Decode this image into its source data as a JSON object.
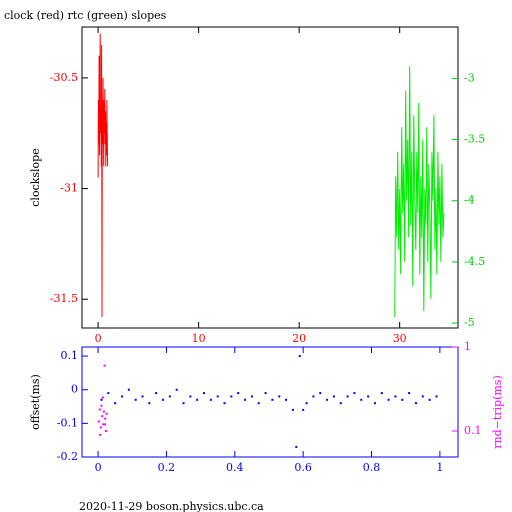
{
  "chart_data": [
    {
      "type": "line",
      "title": "clock (red) rtc (green) slopes",
      "ylabel": "clockslope",
      "xlim": [
        -1.6,
        35.8
      ],
      "xticks": [
        0,
        10,
        20,
        30
      ],
      "ylim": [
        -31.63,
        -30.27
      ],
      "yticks": [
        -30.5,
        -31,
        -31.5
      ],
      "y2lim": [
        -5.04,
        -2.58
      ],
      "y2ticks": [
        -3,
        -3.5,
        -4,
        -4.5,
        -5
      ],
      "axis_color": "#000000",
      "tick_color": "#ff0000",
      "tick2_color": "#00cc00",
      "series": [
        {
          "name": "clock",
          "color": "#ff0000",
          "axis": "y",
          "x": [
            0,
            0.035,
            0.07,
            0.105,
            0.14,
            0.175,
            0.21,
            0.245,
            0.28,
            0.315,
            0.35,
            0.385,
            0.42,
            0.455,
            0.49,
            0.525,
            0.56,
            0.595,
            0.63,
            0.665,
            0.7,
            0.735,
            0.77,
            0.805,
            0.84,
            0.875,
            0.91,
            0.945
          ],
          "values": [
            -30.95,
            -30.6,
            -30.8,
            -30.4,
            -30.85,
            -30.55,
            -30.3,
            -30.75,
            -30.65,
            -30.9,
            -30.35,
            -31.58,
            -30.6,
            -30.8,
            -30.5,
            -30.7,
            -30.9,
            -30.6,
            -30.75,
            -30.55,
            -30.8,
            -30.65,
            -30.9,
            -30.7,
            -30.85,
            -30.6,
            -30.75,
            -30.9
          ]
        },
        {
          "name": "rtc",
          "color": "#00ee00",
          "axis": "y2",
          "x": [
            29.5,
            29.6,
            29.7,
            29.8,
            29.9,
            30.0,
            30.1,
            30.2,
            30.3,
            30.4,
            30.5,
            30.6,
            30.7,
            30.8,
            30.9,
            31.0,
            31.1,
            31.2,
            31.3,
            31.4,
            31.5,
            31.6,
            31.7,
            31.8,
            31.9,
            32.0,
            32.1,
            32.2,
            32.3,
            32.4,
            32.5,
            32.6,
            32.7,
            32.8,
            32.9,
            33.0,
            33.1,
            33.2,
            33.3,
            33.4,
            33.5,
            33.6,
            33.7,
            33.8,
            33.9,
            34.0,
            34.1,
            34.2,
            34.3,
            34.4
          ],
          "values": [
            -4.95,
            -3.8,
            -4.3,
            -3.6,
            -4.4,
            -3.9,
            -4.6,
            -3.4,
            -4.1,
            -3.7,
            -4.5,
            -3.1,
            -4.0,
            -3.5,
            -4.3,
            -2.9,
            -4.2,
            -3.6,
            -4.7,
            -3.3,
            -4.0,
            -4.4,
            -3.6,
            -4.1,
            -3.2,
            -4.6,
            -3.8,
            -4.3,
            -3.5,
            -4.9,
            -3.9,
            -4.2,
            -3.4,
            -4.5,
            -3.7,
            -4.1,
            -4.8,
            -3.6,
            -4.0,
            -3.3,
            -4.4,
            -3.9,
            -4.6,
            -3.6,
            -4.2,
            -3.8,
            -4.5,
            -3.7,
            -4.3,
            -4.1
          ]
        }
      ]
    },
    {
      "type": "scatter",
      "ylabel": "offset(ms)",
      "y2label": "rnd−trip(ms)",
      "xlim": [
        -0.047,
        1.053
      ],
      "xticks": [
        0,
        0.2,
        0.4,
        0.6,
        0.8,
        1
      ],
      "ylim": [
        -0.2,
        0.127
      ],
      "yticks": [
        0.1,
        0,
        -0.1,
        -0.2
      ],
      "y2lim": [
        0.049,
        1
      ],
      "y2ticks": [
        1,
        0.1
      ],
      "y2log": true,
      "axis_color": "#0000ff",
      "tick_color": "#0000ff",
      "tick2_color": "#ff00ff",
      "series": [
        {
          "name": "offset",
          "color": "#0000ff",
          "axis": "y",
          "x": [
            0.01,
            0.03,
            0.05,
            0.07,
            0.09,
            0.11,
            0.13,
            0.15,
            0.17,
            0.19,
            0.21,
            0.23,
            0.25,
            0.27,
            0.29,
            0.31,
            0.33,
            0.35,
            0.37,
            0.39,
            0.41,
            0.43,
            0.45,
            0.47,
            0.49,
            0.51,
            0.53,
            0.55,
            0.57,
            0.58,
            0.59,
            0.6,
            0.61,
            0.63,
            0.65,
            0.67,
            0.69,
            0.71,
            0.73,
            0.75,
            0.77,
            0.79,
            0.81,
            0.83,
            0.85,
            0.87,
            0.89,
            0.91,
            0.93,
            0.95,
            0.97,
            0.99
          ],
          "values": [
            -0.03,
            -0.01,
            -0.04,
            -0.02,
            0.0,
            -0.03,
            -0.02,
            -0.04,
            -0.01,
            -0.03,
            -0.02,
            0.0,
            -0.04,
            -0.02,
            -0.03,
            -0.01,
            -0.03,
            -0.02,
            -0.04,
            -0.02,
            -0.01,
            -0.03,
            -0.02,
            -0.04,
            -0.01,
            -0.03,
            -0.02,
            -0.03,
            -0.06,
            -0.17,
            0.1,
            -0.06,
            -0.04,
            -0.02,
            -0.01,
            -0.03,
            -0.02,
            -0.04,
            -0.02,
            -0.01,
            -0.03,
            -0.02,
            -0.04,
            -0.01,
            -0.03,
            -0.02,
            -0.03,
            -0.01,
            -0.04,
            -0.02,
            -0.03,
            -0.02
          ]
        },
        {
          "name": "rnd-trip",
          "color": "#ff00ff",
          "axis": "y2",
          "x": [
            0.002,
            0.005,
            0.008,
            0.01,
            0.012,
            0.015,
            0.017,
            0.019,
            0.021,
            0.023,
            0.025,
            0.014,
            0.02,
            0.006
          ],
          "values": [
            0.13,
            0.18,
            0.11,
            0.2,
            0.15,
            0.12,
            0.17,
            0.6,
            0.14,
            0.1,
            0.16,
            0.25,
            0.12,
            0.09
          ]
        }
      ]
    }
  ],
  "footer": "2020-11-29 boson.physics.ubc.ca"
}
